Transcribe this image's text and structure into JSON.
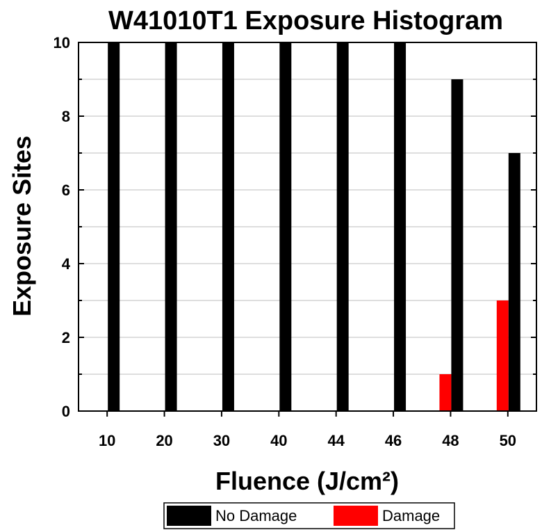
{
  "chart_data": {
    "type": "bar",
    "title": "W41010T1 Exposure Histogram",
    "xlabel": "Fluence (J/cm²)",
    "ylabel": "Exposure Sites",
    "categories": [
      "10",
      "20",
      "30",
      "40",
      "44",
      "46",
      "48",
      "50"
    ],
    "series": [
      {
        "name": "Damage",
        "color": "#ff0000",
        "values": [
          0,
          0,
          0,
          0,
          0,
          0,
          1,
          3
        ]
      },
      {
        "name": "No Damage",
        "color": "#000000",
        "values": [
          10,
          10,
          10,
          10,
          10,
          10,
          9,
          7
        ]
      }
    ],
    "ylim": [
      0,
      10
    ],
    "yticks": [
      "0",
      "2",
      "4",
      "6",
      "8",
      "10"
    ],
    "grid": true,
    "legend": {
      "position": "bottom",
      "order": [
        "No Damage",
        "Damage"
      ]
    }
  }
}
